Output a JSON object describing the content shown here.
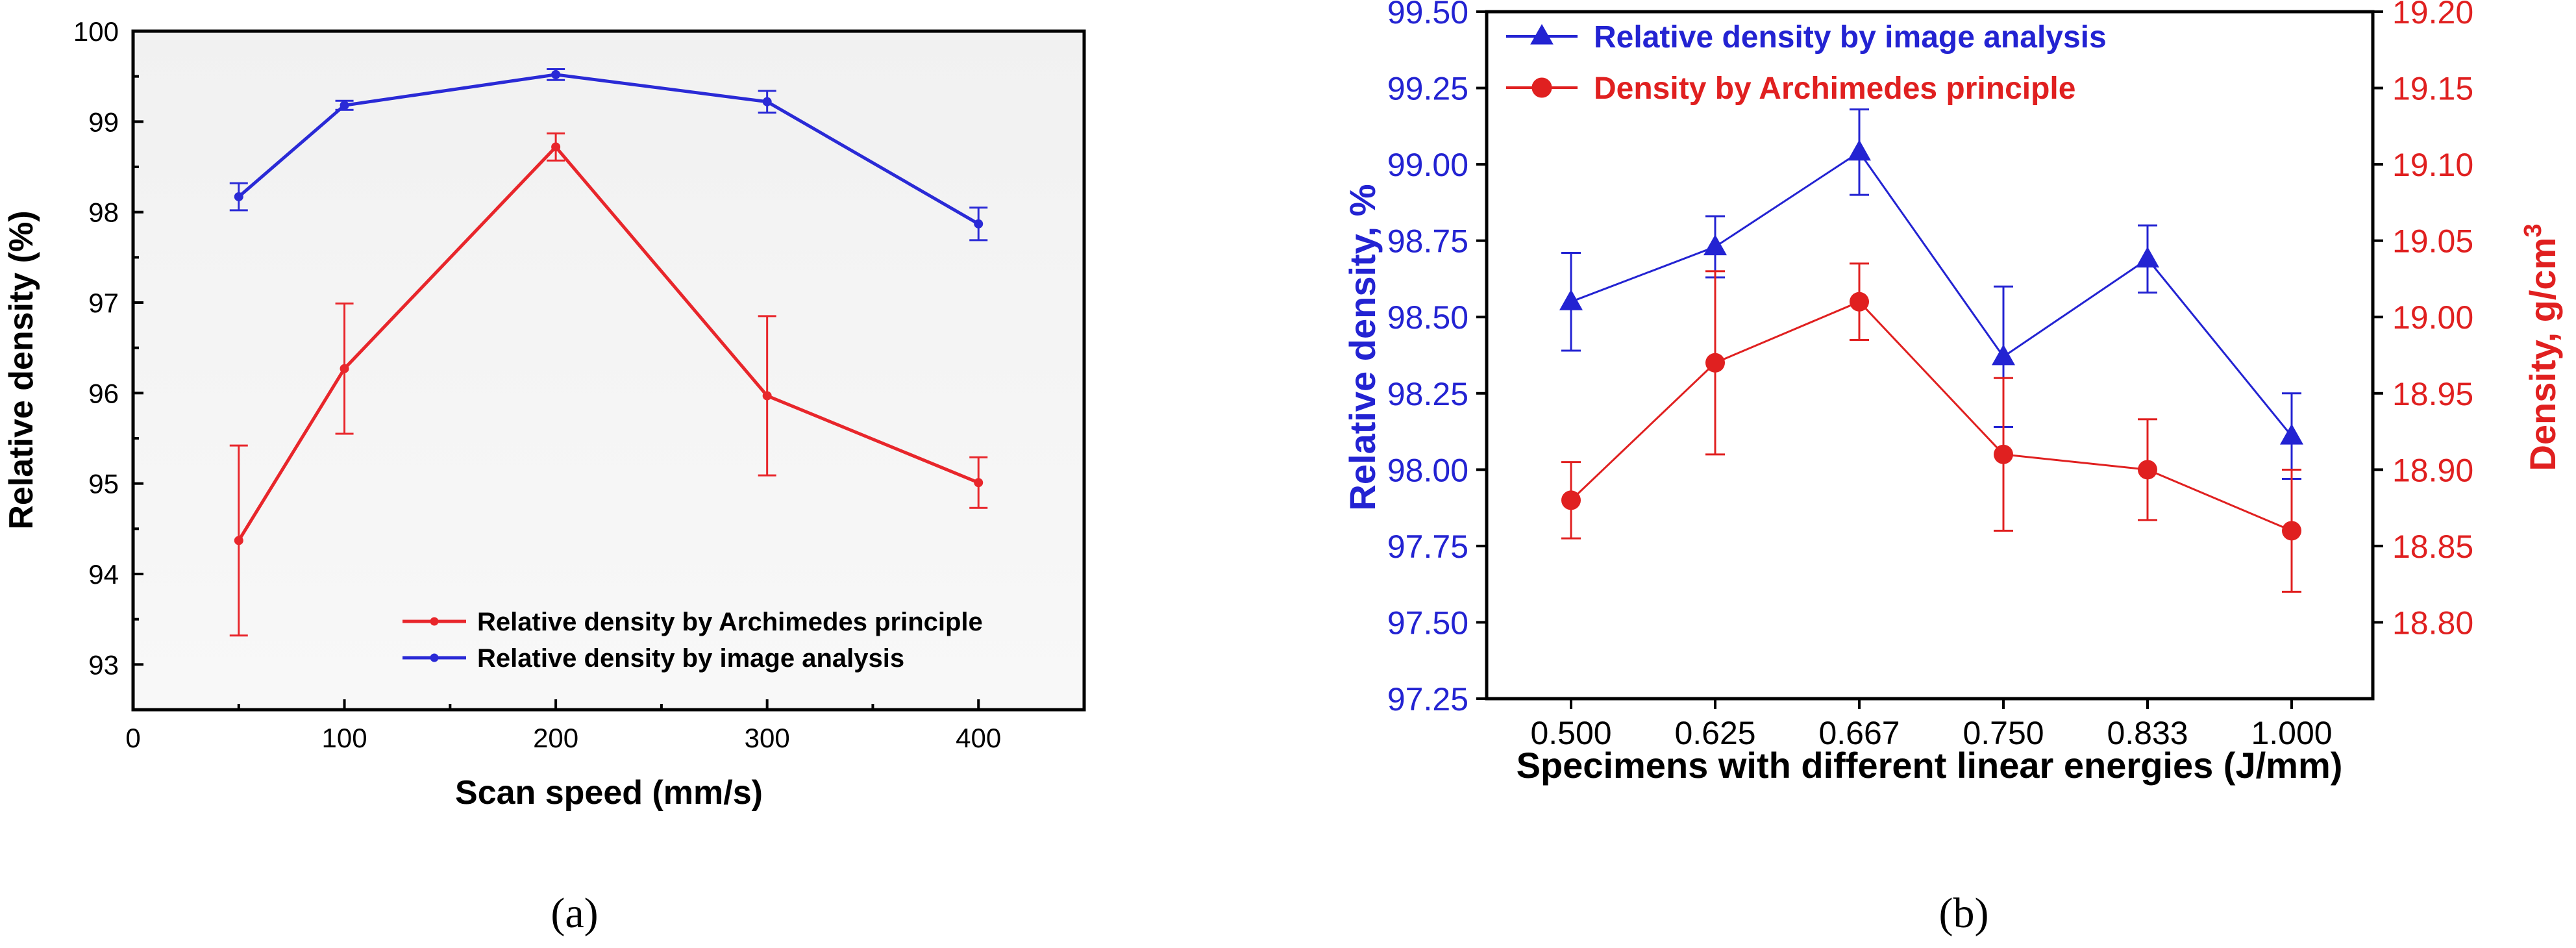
{
  "chart_data": [
    {
      "type": "line",
      "xlabel": "Scan speed (mm/s)",
      "ylabel": "Relative density (%)",
      "xlim": [
        0,
        450
      ],
      "ylim": [
        92.5,
        100
      ],
      "xticks": [
        0,
        100,
        200,
        300,
        400
      ],
      "xtick_labels": [
        "0",
        "100",
        "200",
        "300",
        "400"
      ],
      "yticks": [
        93,
        94,
        95,
        96,
        97,
        98,
        99,
        100
      ],
      "ytick_labels": [
        "93",
        "94",
        "95",
        "96",
        "97",
        "98",
        "99",
        "100"
      ],
      "x": [
        50,
        100,
        200,
        300,
        400
      ],
      "legend_position": "lower-right",
      "series": [
        {
          "name": "Relative density by Archimedes principle",
          "color": "#e8262b",
          "values": [
            94.37,
            96.27,
            98.72,
            95.97,
            95.01
          ],
          "errors": [
            1.05,
            0.72,
            0.15,
            0.88,
            0.28
          ]
        },
        {
          "name": "Relative density by image analysis",
          "color": "#2a2ad6",
          "values": [
            98.17,
            99.18,
            99.52,
            99.22,
            97.87
          ],
          "errors": [
            0.15,
            0.05,
            0.06,
            0.12,
            0.18
          ]
        }
      ],
      "caption": "(a)"
    },
    {
      "type": "line",
      "xlabel": "Specimens with different linear energies (J/mm)",
      "ylabel_left": "Relative density, %",
      "ylabel_right": "Density, g/cm",
      "ylabel_right_superscript": "3",
      "categories": [
        "0.500",
        "0.625",
        "0.667",
        "0.750",
        "0.833",
        "1.000"
      ],
      "ylim_left": [
        97.25,
        99.5
      ],
      "ylim_right": [
        18.75,
        19.2
      ],
      "yticks_left": [
        "97.25",
        "97.50",
        "97.75",
        "98.00",
        "98.25",
        "98.50",
        "98.75",
        "99.00",
        "99.25",
        "99.50"
      ],
      "yticks_right": [
        "18.80",
        "18.85",
        "18.90",
        "18.95",
        "19.00",
        "19.05",
        "19.10",
        "19.15",
        "19.20"
      ],
      "legend_position": "top-left",
      "series": [
        {
          "name": "Relative density by image analysis",
          "axis": "left",
          "marker": "triangle",
          "color": "#2323d2",
          "values": [
            98.55,
            98.73,
            99.04,
            98.37,
            98.69,
            98.11
          ],
          "errors": [
            0.16,
            0.1,
            0.14,
            0.23,
            0.11,
            0.14
          ]
        },
        {
          "name": "Density by Archimedes principle",
          "axis": "right",
          "marker": "circle",
          "color": "#e02020",
          "values": [
            18.88,
            18.97,
            19.01,
            18.91,
            18.9,
            18.86
          ],
          "errors": [
            0.025,
            0.06,
            0.025,
            0.05,
            0.033,
            0.04
          ]
        }
      ],
      "caption": "(b)"
    }
  ]
}
